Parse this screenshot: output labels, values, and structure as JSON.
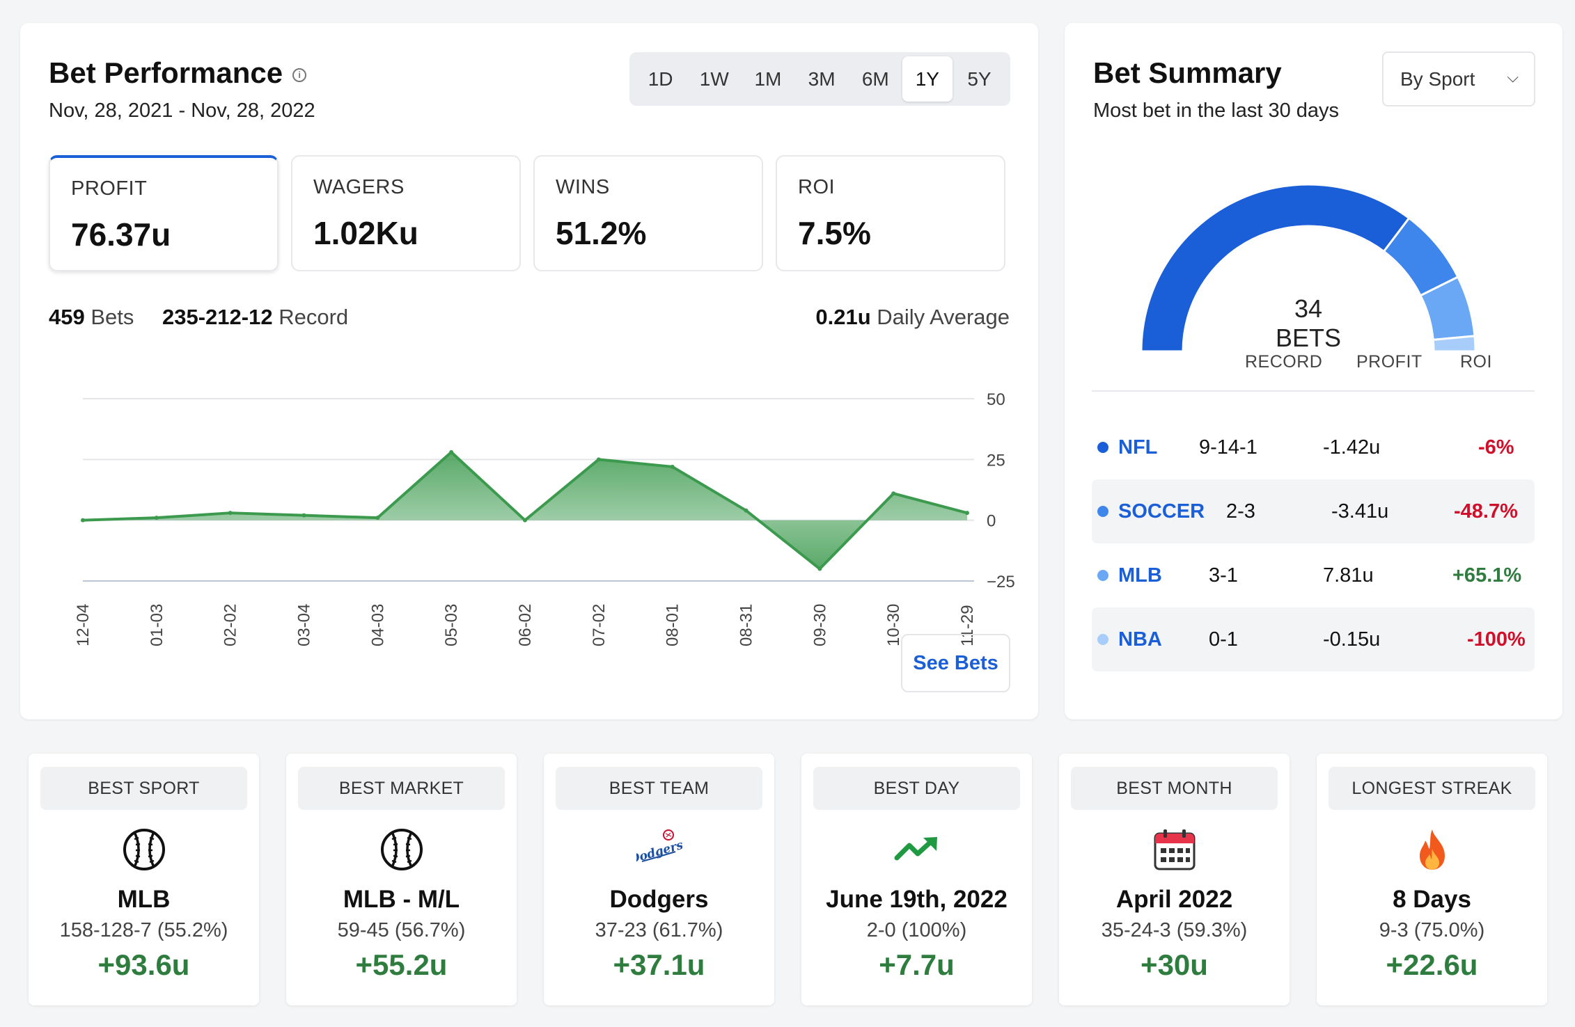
{
  "performance": {
    "title": "Bet Performance",
    "date_range": "Nov, 28, 2021 - Nov, 28, 2022",
    "ranges": [
      "1D",
      "1W",
      "1M",
      "3M",
      "6M",
      "1Y",
      "5Y"
    ],
    "active_range": "1Y",
    "stats": [
      {
        "label": "PROFIT",
        "value": "76.37u"
      },
      {
        "label": "WAGERS",
        "value": "1.02Ku"
      },
      {
        "label": "WINS",
        "value": "51.2%"
      },
      {
        "label": "ROI",
        "value": "7.5%"
      }
    ],
    "bets_count": "459",
    "bets_label": "Bets",
    "record": "235-212-12",
    "record_label": "Record",
    "daily_avg": "0.21u",
    "daily_avg_label": "Daily Average",
    "see_bets": "See Bets"
  },
  "chart_data": {
    "type": "area",
    "x": [
      "12-04",
      "01-03",
      "02-02",
      "03-04",
      "04-03",
      "05-03",
      "06-02",
      "07-02",
      "08-01",
      "08-31",
      "09-30",
      "10-30",
      "11-29"
    ],
    "values": [
      0,
      1,
      3,
      2,
      1,
      28,
      0,
      25,
      22,
      4,
      -20,
      11,
      3
    ],
    "ylim": [
      -25,
      50
    ],
    "yticks": [
      50,
      25,
      0,
      -25
    ],
    "ytick_labels": [
      "50",
      "25",
      "0",
      "−25"
    ],
    "color": "#3c9a4e"
  },
  "summary": {
    "title": "Bet Summary",
    "subtitle": "Most bet in the last 30 days",
    "dropdown": "By Sport",
    "gauge_count": "34",
    "gauge_label": "BETS",
    "gauge_segments": [
      {
        "sport": "NFL",
        "bets": 24,
        "color": "#1a5fd8"
      },
      {
        "sport": "SOCCER",
        "bets": 5,
        "color": "#3f86ec"
      },
      {
        "sport": "MLB",
        "bets": 4,
        "color": "#6aa8f5"
      },
      {
        "sport": "NBA",
        "bets": 1,
        "color": "#a9cdfa"
      }
    ],
    "headers": {
      "record": "RECORD",
      "profit": "PROFIT",
      "roi": "ROI"
    },
    "rows": [
      {
        "sport": "NFL",
        "record": "9-14-1",
        "profit": "-1.42u",
        "roi": "-6%",
        "dot": "#1a5fd8",
        "roi_class": "neg"
      },
      {
        "sport": "SOCCER",
        "record": "2-3",
        "profit": "-3.41u",
        "roi": "-48.7%",
        "dot": "#3f86ec",
        "roi_class": "neg"
      },
      {
        "sport": "MLB",
        "record": "3-1",
        "profit": "7.81u",
        "roi": "+65.1%",
        "dot": "#6aa8f5",
        "roi_class": "pos"
      },
      {
        "sport": "NBA",
        "record": "0-1",
        "profit": "-0.15u",
        "roi": "-100%",
        "dot": "#a9cdfa",
        "roi_class": "neg"
      }
    ]
  },
  "best": [
    {
      "header": "BEST SPORT",
      "icon": "baseball-icon",
      "name": "MLB",
      "record": "158-128-7 (55.2%)",
      "units": "+93.6u"
    },
    {
      "header": "BEST MARKET",
      "icon": "baseball-icon",
      "name": "MLB - M/L",
      "record": "59-45 (56.7%)",
      "units": "+55.2u"
    },
    {
      "header": "BEST TEAM",
      "icon": "dodgers-logo-icon",
      "name": "Dodgers",
      "record": "37-23 (61.7%)",
      "units": "+37.1u",
      "logo_text": "Dodgers"
    },
    {
      "header": "BEST DAY",
      "icon": "trending-up-icon",
      "name": "June 19th, 2022",
      "record": "2-0 (100%)",
      "units": "+7.7u"
    },
    {
      "header": "BEST MONTH",
      "icon": "calendar-icon",
      "name": "April 2022",
      "record": "35-24-3 (59.3%)",
      "units": "+30u"
    },
    {
      "header": "LONGEST STREAK",
      "icon": "flame-icon",
      "name": "8 Days",
      "record": "9-3 (75.0%)",
      "units": "+22.6u"
    }
  ],
  "colors": {
    "accent": "#1a5fd8",
    "positive": "#2e7d3e",
    "negative": "#d0102b",
    "chart_line": "#3c9a4e"
  }
}
